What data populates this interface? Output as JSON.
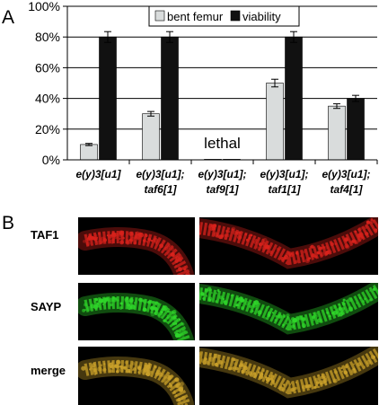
{
  "panel_a_label": "A",
  "panel_b_label": "B",
  "chart_data": {
    "type": "bar",
    "categories": [
      [
        "e(y)3[u1]"
      ],
      [
        "e(y)3[u1];",
        "taf6[1]"
      ],
      [
        "e(y)3[u1];",
        "taf9[1]"
      ],
      [
        "e(y)3[u1];",
        "taf1[1]"
      ],
      [
        "e(y)3[u1];",
        "taf4[1]"
      ]
    ],
    "series": [
      {
        "name": "bent femur",
        "values": [
          10,
          30,
          0,
          50,
          35
        ],
        "errors": [
          0.7,
          1.5,
          0,
          2.5,
          1.5
        ],
        "color": "#d9dcdc"
      },
      {
        "name": "viability",
        "values": [
          80,
          80,
          0,
          80,
          40
        ],
        "errors": [
          3.5,
          3.5,
          0,
          3.5,
          2
        ],
        "color": "#111111"
      }
    ],
    "ylim": [
      0,
      100
    ],
    "yticks": [
      "0%",
      "20%",
      "40%",
      "60%",
      "80%",
      "100%"
    ],
    "grid": true,
    "legend_position": "top",
    "annotation": "lethal"
  },
  "micrographs": {
    "rows": [
      "TAF1",
      "SAYP",
      "merge"
    ],
    "colors": {
      "TAF1": "#d8221c",
      "SAYP": "#2fd62a",
      "merge": "#c9a02a"
    }
  }
}
